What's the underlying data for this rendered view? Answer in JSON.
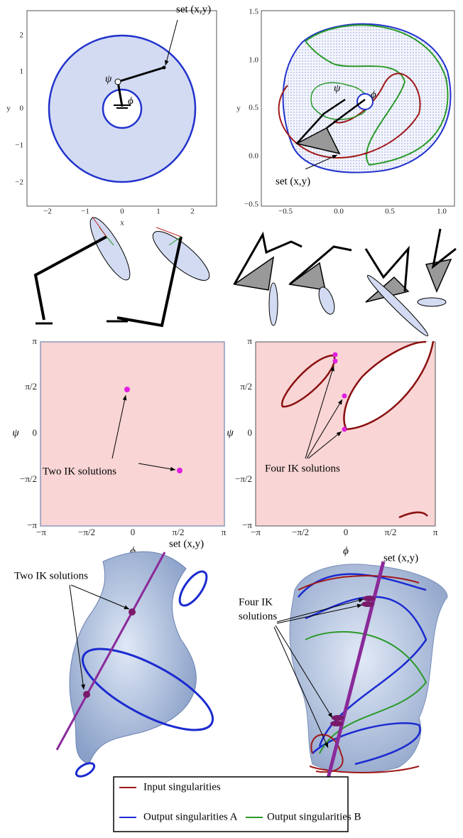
{
  "workspace_a": {
    "x_label": "x",
    "y_label": "y",
    "x_ticks": [
      "−2",
      "−1",
      "0",
      "1",
      "2"
    ],
    "y_ticks": [
      "−2",
      "−1",
      "0",
      "1",
      "2"
    ],
    "annotation": "set (x,y)",
    "angle_psi": "ψ",
    "angle_phi": "ϕ"
  },
  "workspace_b": {
    "x_ticks": [
      "−0.5",
      "0.0",
      "0.5",
      "1.0"
    ],
    "y_ticks": [
      "−0.5",
      "0.0",
      "0.5",
      "1.0",
      "1.5"
    ],
    "y_label": "y",
    "annotation": "set (x,y)",
    "angle_psi": "ψ",
    "angle_phi": "ϕ"
  },
  "config_a": {
    "x_ticks": [
      "−π",
      "−π/2",
      "0",
      "π/2",
      "π"
    ],
    "y_ticks": [
      "π",
      "π/2",
      "0",
      "−π/2",
      "−π"
    ],
    "x_label": "ϕ",
    "y_label": "ψ",
    "annotation": "Two IK solutions"
  },
  "config_b": {
    "x_ticks": [
      "−π",
      "−π/2",
      "0",
      "π/2",
      "π"
    ],
    "y_ticks": [
      "π",
      "π/2",
      "0",
      "−π/2",
      "−π"
    ],
    "x_label": "ϕ",
    "y_label": "ψ",
    "annotation": "Four IK solutions"
  },
  "surface_a": {
    "annotation": "Two IK solutions",
    "line_label": "set (x,y)"
  },
  "surface_b": {
    "annotation_line1": "Four IK",
    "annotation_line2": "solutions",
    "line_label": "set (x,y)"
  },
  "legend": {
    "input": "Input singularities",
    "output_a": "Output singularities A",
    "output_b": "Output singularities B"
  }
}
